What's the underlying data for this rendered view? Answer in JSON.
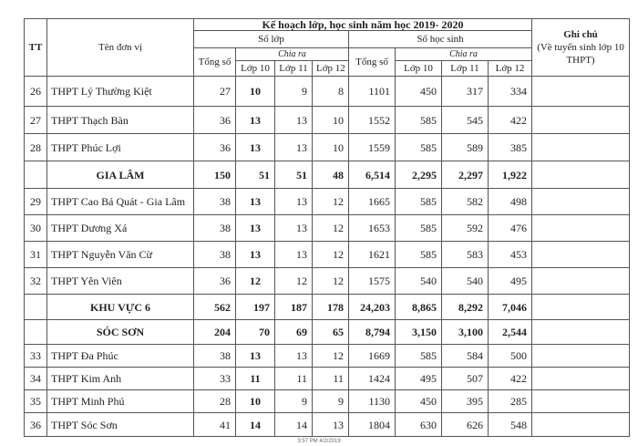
{
  "header": {
    "tt": "TT",
    "unit_name": "Tên đơn vị",
    "plan_title": "Kế hoạch lớp, học sinh năm học 2019- 2020",
    "classes": "Số lớp",
    "students": "Số học sinh",
    "total": "Tổng số",
    "breakdown": "Chia ra",
    "grade10": "Lớp 10",
    "grade11": "Lớp 11",
    "grade12": "Lớp 12",
    "note": "Ghi chú",
    "note_sub": "(Về tuyển sinh lớp 10 THPT)"
  },
  "rows": [
    {
      "tt": "26",
      "name": "THPT Lý Thường Kiệt",
      "group": false,
      "values": [
        "27",
        "10",
        "9",
        "8",
        "1101",
        "450",
        "317",
        "334"
      ],
      "note": ""
    },
    {
      "tt": "27",
      "name": "THPT Thạch Bàn",
      "group": false,
      "values": [
        "36",
        "13",
        "13",
        "10",
        "1552",
        "585",
        "545",
        "422"
      ],
      "note": ""
    },
    {
      "tt": "28",
      "name": "THPT Phúc Lợi",
      "group": false,
      "values": [
        "36",
        "13",
        "13",
        "10",
        "1559",
        "585",
        "589",
        "385"
      ],
      "note": ""
    },
    {
      "tt": "",
      "name": "GIA LÂM",
      "group": true,
      "values": [
        "150",
        "51",
        "51",
        "48",
        "6,514",
        "2,295",
        "2,297",
        "1,922"
      ],
      "note": ""
    },
    {
      "tt": "29",
      "name": "THPT Cao Bá Quát - Gia Lâm",
      "group": false,
      "values": [
        "38",
        "13",
        "13",
        "12",
        "1665",
        "585",
        "582",
        "498"
      ],
      "note": ""
    },
    {
      "tt": "30",
      "name": "THPT Dương Xá",
      "group": false,
      "values": [
        "38",
        "13",
        "13",
        "12",
        "1653",
        "585",
        "592",
        "476"
      ],
      "note": ""
    },
    {
      "tt": "31",
      "name": "THPT Nguyễn Văn Cừ",
      "group": false,
      "values": [
        "38",
        "13",
        "13",
        "12",
        "1621",
        "585",
        "583",
        "453"
      ],
      "note": ""
    },
    {
      "tt": "32",
      "name": "THPT Yên Viên",
      "group": false,
      "values": [
        "36",
        "12",
        "12",
        "12",
        "1575",
        "540",
        "540",
        "495"
      ],
      "note": ""
    },
    {
      "tt": "",
      "name": "KHU VỰC 6",
      "group": true,
      "values": [
        "562",
        "197",
        "187",
        "178",
        "24,203",
        "8,865",
        "8,292",
        "7,046"
      ],
      "note": ""
    },
    {
      "tt": "",
      "name": "SÓC SƠN",
      "group": true,
      "values": [
        "204",
        "70",
        "69",
        "65",
        "8,794",
        "3,150",
        "3,100",
        "2,544"
      ],
      "note": ""
    },
    {
      "tt": "33",
      "name": "THPT Đa Phúc",
      "group": false,
      "values": [
        "38",
        "13",
        "13",
        "12",
        "1669",
        "585",
        "584",
        "500"
      ],
      "note": ""
    },
    {
      "tt": "34",
      "name": "THPT Kim Anh",
      "group": false,
      "values": [
        "33",
        "11",
        "11",
        "11",
        "1424",
        "495",
        "507",
        "422"
      ],
      "note": ""
    },
    {
      "tt": "35",
      "name": "THPT Minh Phú",
      "group": false,
      "values": [
        "28",
        "10",
        "9",
        "9",
        "1130",
        "450",
        "395",
        "285"
      ],
      "note": ""
    },
    {
      "tt": "36",
      "name": "THPT Sóc Sơn",
      "group": false,
      "values": [
        "41",
        "14",
        "14",
        "13",
        "1804",
        "630",
        "626",
        "548"
      ],
      "note": ""
    }
  ],
  "footer": "3:57 PM 4/2/2019"
}
